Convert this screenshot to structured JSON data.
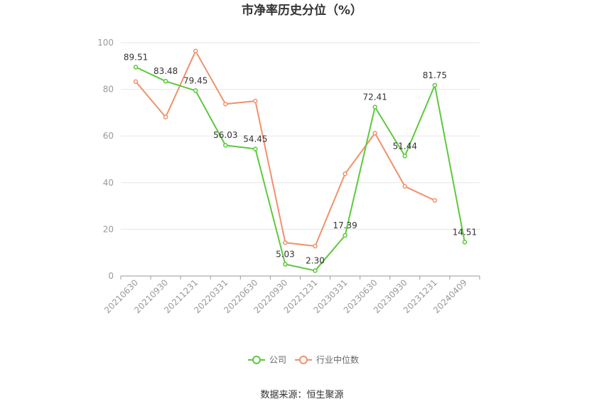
{
  "chart_data": {
    "type": "line",
    "title": "市净率历史分位（%）",
    "categories": [
      "20210630",
      "20210930",
      "20211231",
      "20220331",
      "20220630",
      "20220930",
      "20221231",
      "20230331",
      "20230630",
      "20230930",
      "20231231",
      "20240409"
    ],
    "ylim": [
      0,
      100
    ],
    "yticks": [
      "0",
      "20",
      "40",
      "60",
      "80",
      "100"
    ],
    "grid": true,
    "legend_position": "bottom",
    "series": [
      {
        "name": "公司",
        "color": "#5cc93b",
        "values": [
          89.51,
          83.48,
          79.45,
          56.03,
          54.45,
          5.03,
          2.3,
          17.39,
          72.41,
          51.44,
          81.75,
          14.51
        ],
        "labels": [
          "89.51",
          "83.48",
          "79.45",
          "56.03",
          "54.45",
          "5.03",
          "2.30",
          "17.39",
          "72.41",
          "51.44",
          "81.75",
          "14.51"
        ]
      },
      {
        "name": "行业中位数",
        "color": "#f0916a",
        "values": [
          83.3,
          68.1,
          96.4,
          73.7,
          75.0,
          14.3,
          12.8,
          43.8,
          61.2,
          38.4,
          32.4,
          null
        ]
      }
    ]
  },
  "source": "数据来源：恒生聚源"
}
